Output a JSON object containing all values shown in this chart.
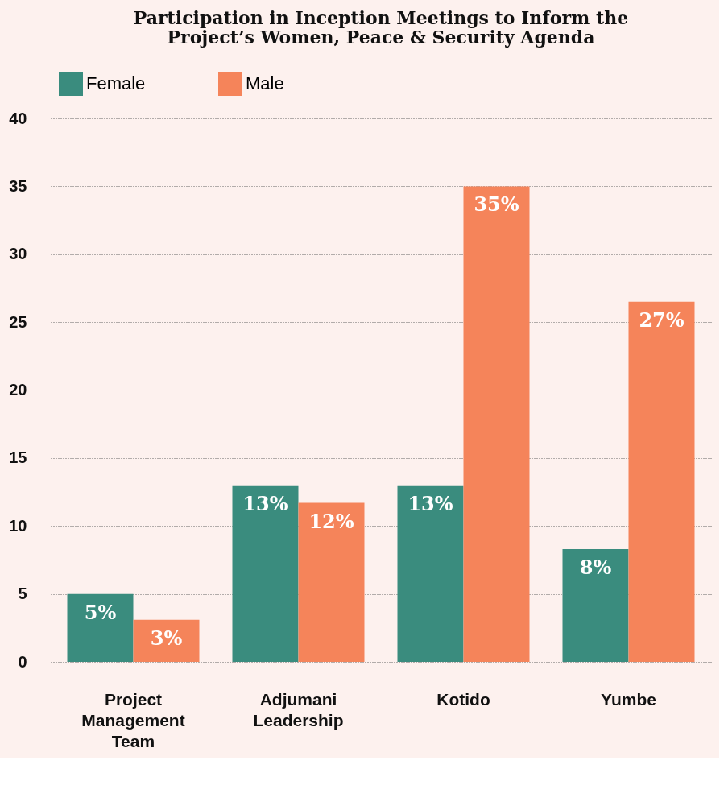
{
  "chart_data": {
    "type": "bar",
    "title": "Participation in Inception Meetings to Inform the Project’s Women, Peace & Security Agenda",
    "categories": [
      "Project Management Team",
      "Adjumani Leadership",
      "Kotido",
      "Yumbe"
    ],
    "series": [
      {
        "name": "Female",
        "color": "#3a8c7e",
        "values": [
          5,
          13,
          13,
          8.3
        ],
        "value_labels": [
          "5%",
          "13%",
          "13%",
          "8%"
        ]
      },
      {
        "name": "Male",
        "color": "#f5845a",
        "values": [
          3.1,
          11.7,
          35,
          26.5
        ],
        "value_labels": [
          "3%",
          "12%",
          "35%",
          "27%"
        ]
      }
    ],
    "ylim": [
      0,
      40
    ],
    "yticks": [
      0,
      5,
      10,
      15,
      20,
      25,
      30,
      35,
      40
    ],
    "grid": "y",
    "legend": "top"
  }
}
